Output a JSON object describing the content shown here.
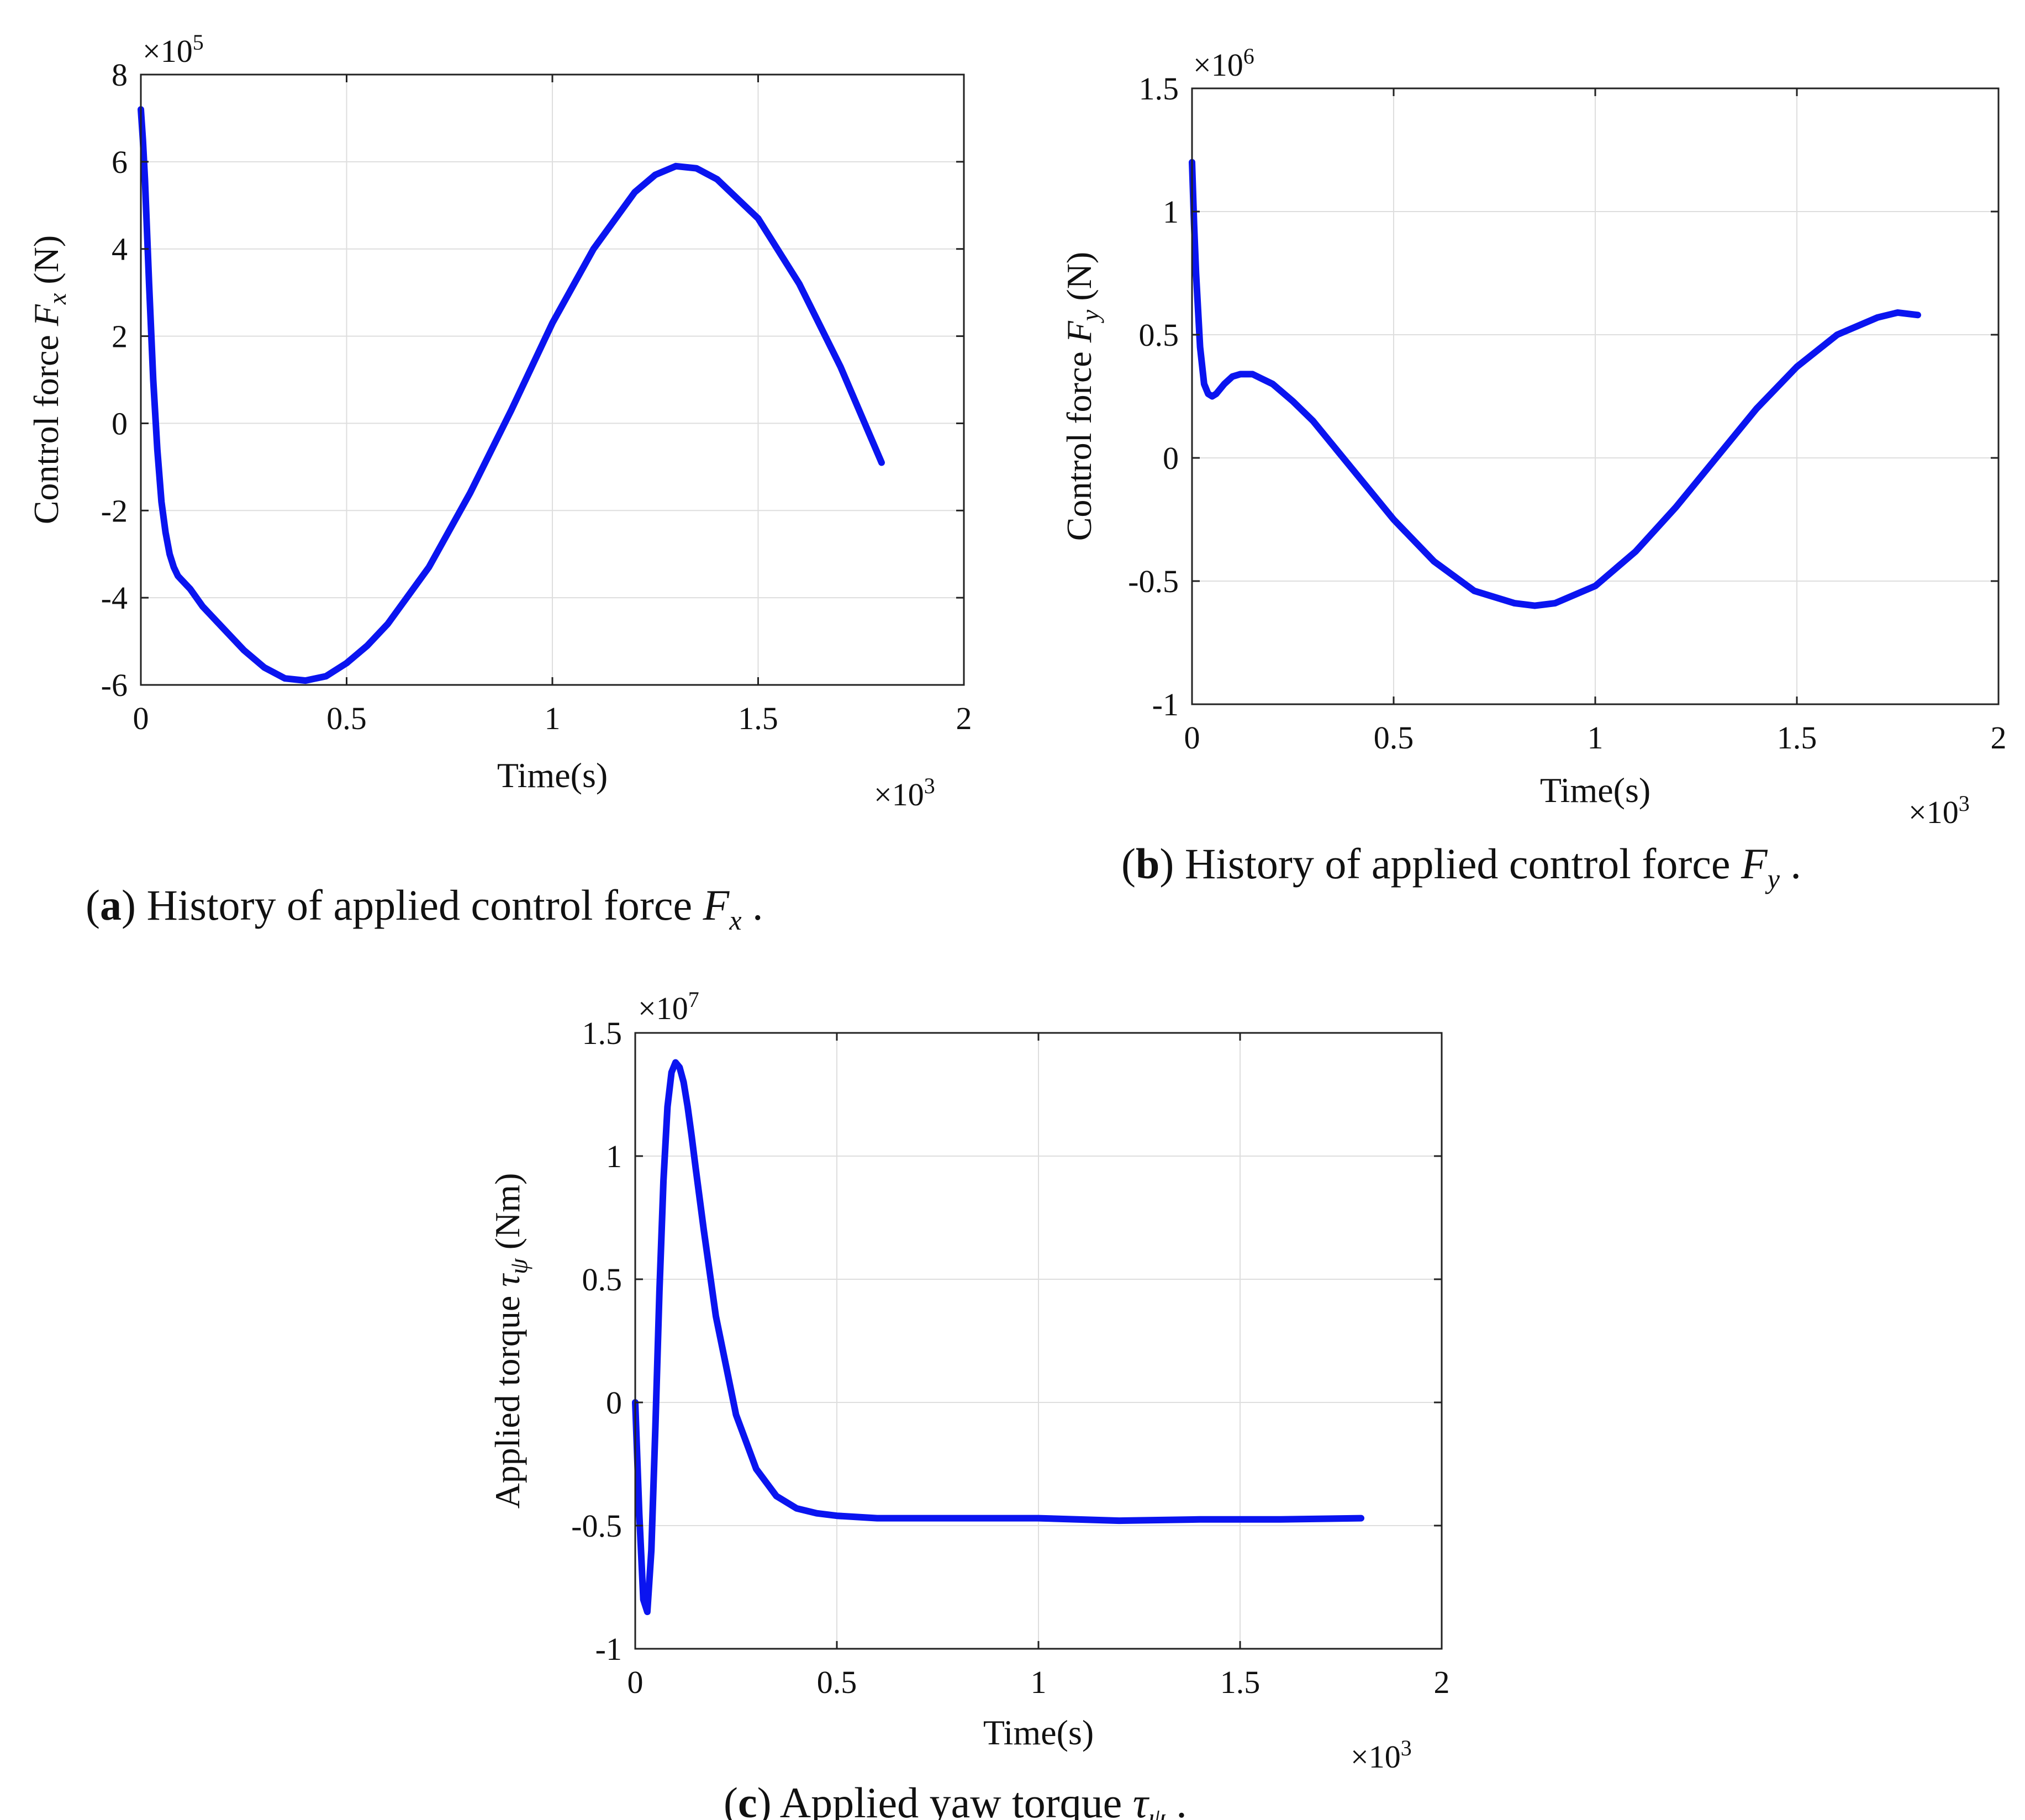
{
  "figure": {
    "panels": [
      {
        "id": "a",
        "caption": {
          "letter": "a",
          "text": " History of applied control force ",
          "symbol": "F",
          "subscript": "x",
          "end": " ."
        },
        "ylabel": {
          "text": "Control force ",
          "symbol": "F",
          "subscript": "x",
          "unit": " (N)"
        },
        "xlabel": "Time(s)",
        "x_multiplier": {
          "base": "×10",
          "exp": "3"
        },
        "y_multiplier": {
          "base": "×10",
          "exp": "5"
        },
        "xticks": [
          "0",
          "0.5",
          "1",
          "1.5",
          "2"
        ],
        "yticks": [
          "8",
          "6",
          "4",
          "2",
          "0",
          "-2",
          "-4",
          "-6"
        ]
      },
      {
        "id": "b",
        "caption": {
          "letter": "b",
          "text": " History of applied control force ",
          "symbol": "F",
          "subscript": "y",
          "end": " ."
        },
        "ylabel": {
          "text": "Control force ",
          "symbol": "F",
          "subscript": "y",
          "unit": " (N)"
        },
        "xlabel": "Time(s)",
        "x_multiplier": {
          "base": "×10",
          "exp": "3"
        },
        "y_multiplier": {
          "base": "×10",
          "exp": "6"
        },
        "xticks": [
          "0",
          "0.5",
          "1",
          "1.5",
          "2"
        ],
        "yticks": [
          "1.5",
          "1",
          "0.5",
          "0",
          "-0.5",
          "-1"
        ]
      },
      {
        "id": "c",
        "caption": {
          "letter": "c",
          "text": " Applied yaw torque ",
          "symbol": "τ",
          "subscript": "ψ",
          "end": " ."
        },
        "ylabel": {
          "text": "Applied torque ",
          "symbol": "τ",
          "subscript": "ψ",
          "unit": " (Nm)"
        },
        "xlabel": "Time(s)",
        "x_multiplier": {
          "base": "×10",
          "exp": "3"
        },
        "y_multiplier": {
          "base": "×10",
          "exp": "7"
        },
        "xticks": [
          "0",
          "0.5",
          "1",
          "1.5",
          "2"
        ],
        "yticks": [
          "1.5",
          "1",
          "0.5",
          "0",
          "-0.5",
          "-1"
        ]
      }
    ]
  },
  "chart_data": [
    {
      "type": "line",
      "panel": "a",
      "title": "",
      "xlabel": "Time(s)",
      "ylabel": "Control force Fx (N)",
      "x_scale": 1000,
      "y_scale": 100000,
      "xlim": [
        0,
        2
      ],
      "ylim": [
        -6,
        8
      ],
      "xtick_values": [
        0,
        0.5,
        1,
        1.5,
        2
      ],
      "ytick_values": [
        8,
        6,
        4,
        2,
        0,
        -2,
        -4,
        -6
      ],
      "grid": true,
      "color": "#0a14f0",
      "series": [
        {
          "name": "Fx",
          "x": [
            0,
            0.005,
            0.01,
            0.02,
            0.03,
            0.04,
            0.05,
            0.06,
            0.07,
            0.08,
            0.09,
            0.1,
            0.12,
            0.15,
            0.2,
            0.25,
            0.3,
            0.35,
            0.4,
            0.45,
            0.5,
            0.55,
            0.6,
            0.7,
            0.8,
            0.9,
            1.0,
            1.1,
            1.2,
            1.25,
            1.3,
            1.35,
            1.4,
            1.5,
            1.6,
            1.7,
            1.8
          ],
          "y": [
            7.2,
            6.5,
            5.6,
            3.2,
            1.0,
            -0.6,
            -1.8,
            -2.5,
            -3.0,
            -3.3,
            -3.5,
            -3.6,
            -3.8,
            -4.2,
            -4.7,
            -5.2,
            -5.6,
            -5.85,
            -5.9,
            -5.8,
            -5.5,
            -5.1,
            -4.6,
            -3.3,
            -1.6,
            0.3,
            2.3,
            4.0,
            5.3,
            5.7,
            5.9,
            5.85,
            5.6,
            4.7,
            3.2,
            1.3,
            -0.9
          ]
        }
      ]
    },
    {
      "type": "line",
      "panel": "b",
      "title": "",
      "xlabel": "Time(s)",
      "ylabel": "Control force Fy (N)",
      "x_scale": 1000,
      "y_scale": 1000000,
      "xlim": [
        0,
        2
      ],
      "ylim": [
        -1,
        1.5
      ],
      "xtick_values": [
        0,
        0.5,
        1,
        1.5,
        2
      ],
      "ytick_values": [
        1.5,
        1,
        0.5,
        0,
        -0.5,
        -1
      ],
      "grid": true,
      "color": "#0a14f0",
      "series": [
        {
          "name": "Fy",
          "x": [
            0,
            0.005,
            0.01,
            0.02,
            0.03,
            0.04,
            0.05,
            0.06,
            0.08,
            0.1,
            0.12,
            0.15,
            0.2,
            0.25,
            0.3,
            0.4,
            0.5,
            0.6,
            0.7,
            0.8,
            0.85,
            0.9,
            1.0,
            1.1,
            1.2,
            1.3,
            1.4,
            1.5,
            1.6,
            1.7,
            1.75,
            1.8
          ],
          "y": [
            1.2,
            0.95,
            0.75,
            0.45,
            0.3,
            0.26,
            0.25,
            0.26,
            0.3,
            0.33,
            0.34,
            0.34,
            0.3,
            0.23,
            0.15,
            -0.05,
            -0.25,
            -0.42,
            -0.54,
            -0.59,
            -0.6,
            -0.59,
            -0.52,
            -0.38,
            -0.2,
            0.0,
            0.2,
            0.37,
            0.5,
            0.57,
            0.59,
            0.58
          ]
        }
      ]
    },
    {
      "type": "line",
      "panel": "c",
      "title": "",
      "xlabel": "Time(s)",
      "ylabel": "Applied torque τψ (Nm)",
      "x_scale": 1000,
      "y_scale": 10000000,
      "xlim": [
        0,
        2
      ],
      "ylim": [
        -1,
        1.5
      ],
      "xtick_values": [
        0,
        0.5,
        1,
        1.5,
        2
      ],
      "ytick_values": [
        1.5,
        1,
        0.5,
        0,
        -0.5,
        -1
      ],
      "grid": true,
      "color": "#0a14f0",
      "series": [
        {
          "name": "tau_psi",
          "x": [
            0,
            0.01,
            0.02,
            0.03,
            0.04,
            0.05,
            0.06,
            0.07,
            0.08,
            0.09,
            0.1,
            0.11,
            0.12,
            0.13,
            0.14,
            0.15,
            0.17,
            0.2,
            0.25,
            0.3,
            0.35,
            0.4,
            0.45,
            0.5,
            0.6,
            0.8,
            1.0,
            1.2,
            1.4,
            1.6,
            1.8
          ],
          "y": [
            0.0,
            -0.45,
            -0.8,
            -0.85,
            -0.6,
            -0.1,
            0.45,
            0.9,
            1.2,
            1.34,
            1.38,
            1.36,
            1.3,
            1.2,
            1.08,
            0.95,
            0.7,
            0.35,
            -0.05,
            -0.27,
            -0.38,
            -0.43,
            -0.45,
            -0.46,
            -0.47,
            -0.47,
            -0.47,
            -0.48,
            -0.475,
            -0.475,
            -0.47
          ]
        }
      ]
    }
  ]
}
